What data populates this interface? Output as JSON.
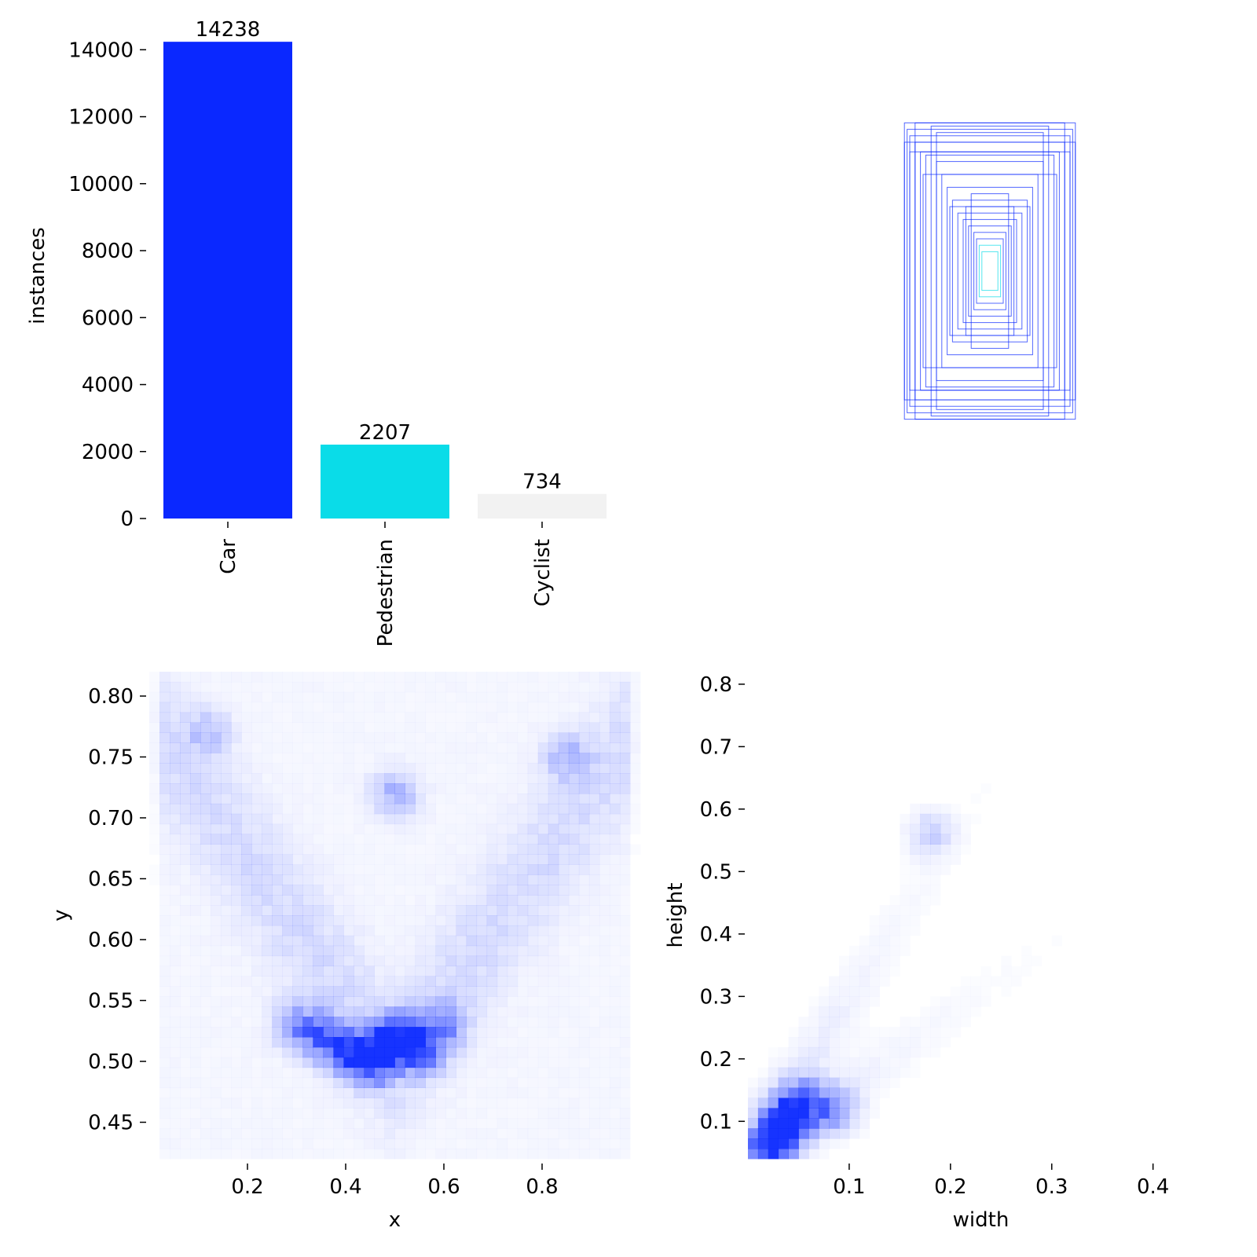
{
  "chart_data": [
    {
      "type": "bar",
      "title": "",
      "xlabel": "",
      "ylabel": "instances",
      "categories": [
        "Car",
        "Pedestrian",
        "Cyclist"
      ],
      "values": [
        14238,
        2207,
        734
      ],
      "data_labels": [
        "14238",
        "2207",
        "734"
      ],
      "colors": [
        "#0a28ff",
        "#0adce8",
        "#f2f2f2"
      ],
      "ylim": [
        0,
        14500
      ],
      "yticks": [
        0,
        2000,
        4000,
        6000,
        8000,
        10000,
        12000,
        14000
      ],
      "ytick_labels": [
        "0",
        "2000",
        "4000",
        "6000",
        "8000",
        "10000",
        "12000",
        "14000"
      ],
      "grid": false
    },
    {
      "type": "boxes",
      "title": "",
      "description_of_marks": "overlaid rectangles centered at a common point, sized by width and height",
      "boxes": [
        {
          "w": 0.32,
          "h": 0.46
        },
        {
          "w": 0.31,
          "h": 0.44
        },
        {
          "w": 0.3,
          "h": 0.42
        },
        {
          "w": 0.28,
          "h": 0.4
        },
        {
          "w": 0.26,
          "h": 0.37
        },
        {
          "w": 0.24,
          "h": 0.36
        },
        {
          "w": 0.2,
          "h": 0.34
        },
        {
          "w": 0.18,
          "h": 0.3
        },
        {
          "w": 0.16,
          "h": 0.26
        },
        {
          "w": 0.14,
          "h": 0.22
        },
        {
          "w": 0.12,
          "h": 0.18
        },
        {
          "w": 0.1,
          "h": 0.16
        },
        {
          "w": 0.08,
          "h": 0.14
        },
        {
          "w": 0.06,
          "h": 0.12
        },
        {
          "w": 0.05,
          "h": 0.1
        },
        {
          "w": 0.04,
          "h": 0.08
        },
        {
          "w": 0.03,
          "h": 0.06
        },
        {
          "w": 0.28,
          "h": 0.46
        },
        {
          "w": 0.32,
          "h": 0.4
        },
        {
          "w": 0.22,
          "h": 0.45
        },
        {
          "w": 0.3,
          "h": 0.37
        },
        {
          "w": 0.2,
          "h": 0.43
        },
        {
          "w": 0.15,
          "h": 0.2
        },
        {
          "w": 0.25,
          "h": 0.3
        },
        {
          "w": 0.09,
          "h": 0.2
        },
        {
          "w": 0.07,
          "h": 0.24
        }
      ],
      "colors": [
        "#0a28ff",
        "#0adce8"
      ]
    },
    {
      "type": "heatmap",
      "title": "",
      "xlabel": "x",
      "ylabel": "y",
      "xlim": [
        0.0,
        1.0
      ],
      "ylim": [
        0.42,
        0.82
      ],
      "xticks": [
        0.2,
        0.4,
        0.6,
        0.8
      ],
      "xtick_labels": [
        "0.2",
        "0.4",
        "0.6",
        "0.8"
      ],
      "yticks": [
        0.45,
        0.5,
        0.55,
        0.6,
        0.65,
        0.7,
        0.75,
        0.8
      ],
      "ytick_labels": [
        "0.45",
        "0.50",
        "0.55",
        "0.60",
        "0.65",
        "0.70",
        "0.75",
        "0.80"
      ],
      "color": "#0a28ff",
      "hotspots": [
        {
          "x": 0.5,
          "y": 0.52,
          "density": 0.95
        },
        {
          "x": 0.45,
          "y": 0.5,
          "density": 0.85
        },
        {
          "x": 0.55,
          "y": 0.51,
          "density": 0.7
        },
        {
          "x": 0.4,
          "y": 0.51,
          "density": 0.65
        },
        {
          "x": 0.35,
          "y": 0.52,
          "density": 0.5
        },
        {
          "x": 0.3,
          "y": 0.53,
          "density": 0.35
        },
        {
          "x": 0.6,
          "y": 0.53,
          "density": 0.4
        },
        {
          "x": 0.5,
          "y": 0.72,
          "density": 0.3
        },
        {
          "x": 0.85,
          "y": 0.75,
          "density": 0.25
        },
        {
          "x": 0.12,
          "y": 0.77,
          "density": 0.2
        }
      ]
    },
    {
      "type": "heatmap",
      "title": "",
      "xlabel": "width",
      "ylabel": "height",
      "xlim": [
        0.0,
        0.46
      ],
      "ylim": [
        0.04,
        0.82
      ],
      "xticks": [
        0.1,
        0.2,
        0.3,
        0.4
      ],
      "xtick_labels": [
        "0.1",
        "0.2",
        "0.3",
        "0.4"
      ],
      "yticks": [
        0.1,
        0.2,
        0.3,
        0.4,
        0.5,
        0.6,
        0.7,
        0.8
      ],
      "ytick_labels": [
        "0.1",
        "0.2",
        "0.3",
        "0.4",
        "0.5",
        "0.6",
        "0.7",
        "0.8"
      ],
      "color": "#0a28ff",
      "hotspots": [
        {
          "x": 0.025,
          "y": 0.06,
          "density": 0.95
        },
        {
          "x": 0.04,
          "y": 0.1,
          "density": 0.75
        },
        {
          "x": 0.05,
          "y": 0.13,
          "density": 0.5
        },
        {
          "x": 0.07,
          "y": 0.12,
          "density": 0.35
        },
        {
          "x": 0.09,
          "y": 0.12,
          "density": 0.25
        },
        {
          "x": 0.18,
          "y": 0.56,
          "density": 0.2
        }
      ]
    }
  ]
}
